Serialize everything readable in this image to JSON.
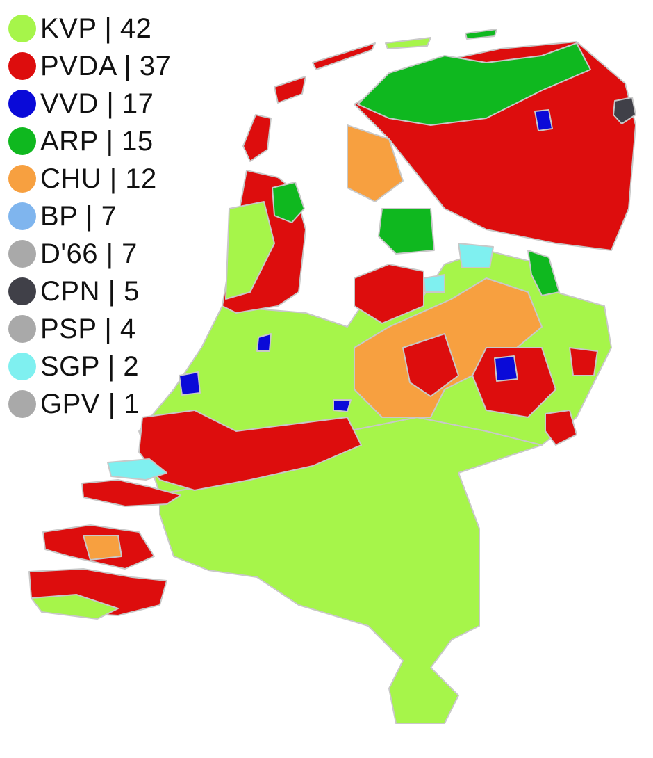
{
  "legend": [
    {
      "label": "KVP | 42",
      "color": "#a6f54a"
    },
    {
      "label": "PVDA | 37",
      "color": "#dd0d0d"
    },
    {
      "label": "VVD | 17",
      "color": "#0a0ad8"
    },
    {
      "label": "ARP | 15",
      "color": "#0fb81f"
    },
    {
      "label": "CHU | 12",
      "color": "#f7a040"
    },
    {
      "label": "BP | 7",
      "color": "#7fb5ee"
    },
    {
      "label": "D'66 | 7",
      "color": "#a9a9a9"
    },
    {
      "label": "CPN | 5",
      "color": "#404048"
    },
    {
      "label": "PSP | 4",
      "color": "#a9a9a9"
    },
    {
      "label": "SGP | 2",
      "color": "#7ff0f0"
    },
    {
      "label": "GPV | 1",
      "color": "#a9a9a9"
    }
  ]
}
